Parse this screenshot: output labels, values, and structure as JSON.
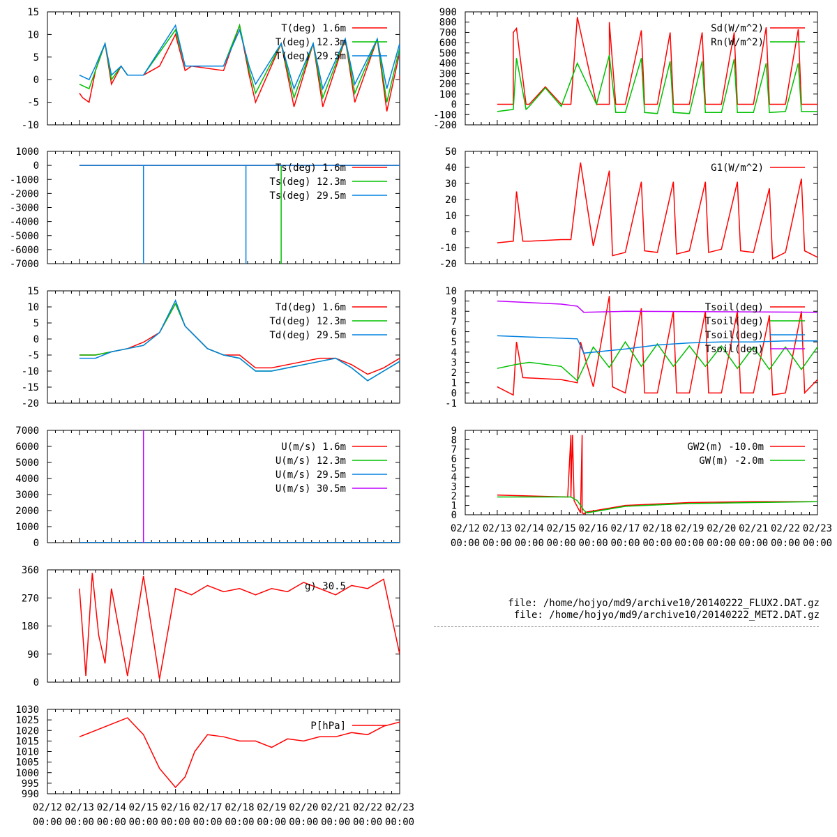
{
  "files": [
    "file: /home/hojyo/md9/archive10/20140222_FLUX2.DAT.gz",
    "file: /home/hojyo/md9/archive10/20140222_MET2.DAT.gz"
  ],
  "time_axis": {
    "start": "2014-02-12 00:00",
    "end": "2014-02-23 00:00",
    "tick_labels_top": [
      "02/12",
      "02/13",
      "02/14",
      "02/15",
      "02/16",
      "02/17",
      "02/18",
      "02/19",
      "02/20",
      "02/21",
      "02/22",
      "02/23"
    ],
    "tick_labels_bottom": [
      "00:00",
      "00:00",
      "00:00",
      "00:00",
      "00:00",
      "00:00",
      "00:00",
      "00:00",
      "00:00",
      "00:00",
      "00:00",
      "00:00"
    ]
  },
  "colors": {
    "red": "#ff0000",
    "green": "#00c000",
    "blue": "#0080e0",
    "purple": "#c000ff"
  },
  "chart_data": [
    {
      "id": "T",
      "type": "line",
      "ylim": [
        -10,
        15
      ],
      "yticks": [
        -10,
        -5,
        0,
        5,
        10,
        15
      ],
      "series": [
        {
          "name": "T(deg)  1.6m",
          "color": "#ff0000",
          "x": [
            1,
            1.1,
            1.3,
            1.5,
            1.8,
            2,
            2.3,
            2.5,
            3,
            3.5,
            4,
            4.3,
            4.5,
            5.5,
            6,
            6.3,
            6.5,
            7.3,
            7.7,
            8.3,
            8.6,
            9.3,
            9.6,
            10.3,
            10.6,
            11,
            11
          ],
          "y": [
            -3,
            -4,
            -5,
            2,
            8,
            -1,
            3,
            1,
            1,
            3,
            10,
            2,
            3,
            2,
            12,
            1,
            -5,
            8,
            -6,
            8,
            -6,
            9,
            -5,
            9,
            -7,
            6,
            0
          ]
        },
        {
          "name": "T(deg) 12.3m",
          "color": "#00c000",
          "x": [
            1,
            1.3,
            1.5,
            1.8,
            2,
            2.3,
            2.5,
            3,
            4,
            4.3,
            4.5,
            5.5,
            6,
            6.3,
            6.5,
            7.3,
            7.7,
            8.3,
            8.6,
            9.3,
            9.6,
            10.3,
            10.6,
            11,
            11
          ],
          "y": [
            -1,
            -2,
            2,
            8,
            0,
            3,
            1,
            1,
            11,
            3,
            3,
            3,
            12,
            2,
            -3,
            8,
            -4,
            8,
            -4,
            9,
            -3,
            9,
            -5,
            7,
            1
          ]
        },
        {
          "name": "T(deg) 29.5m",
          "color": "#0080e0",
          "x": [
            1,
            1.3,
            1.5,
            1.8,
            2,
            2.3,
            2.5,
            3,
            4,
            4.3,
            4.5,
            5.5,
            6,
            6.3,
            6.5,
            7.3,
            7.7,
            8.3,
            8.6,
            9.3,
            9.6,
            10.3,
            10.6,
            11,
            11
          ],
          "y": [
            1,
            0,
            3,
            8,
            1,
            3,
            1,
            1,
            12,
            3,
            3,
            3,
            11,
            3,
            -1,
            8,
            -2,
            8,
            -2,
            9,
            -1,
            9,
            -2,
            8,
            1
          ]
        }
      ]
    },
    {
      "id": "Ts",
      "type": "line",
      "ylim": [
        -7000,
        1000
      ],
      "yticks": [
        -7000,
        -6000,
        -5000,
        -4000,
        -3000,
        -2000,
        -1000,
        0,
        1000
      ],
      "series": [
        {
          "name": "Ts(deg)  1.6m",
          "color": "#ff0000",
          "x": [
            1,
            11
          ],
          "y": [
            0,
            0
          ]
        },
        {
          "name": "Ts(deg) 12.3m",
          "color": "#00c000",
          "x": [
            7.3,
            7.3
          ],
          "y": [
            0,
            -7000
          ]
        },
        {
          "name": "Ts(deg) 29.5m",
          "color": "#0080e0",
          "x": [
            1,
            3,
            3,
            3,
            6.2,
            6.2,
            6.2,
            11
          ],
          "y": [
            0,
            0,
            -7000,
            0,
            0,
            -7000,
            0,
            0
          ]
        }
      ]
    },
    {
      "id": "Td",
      "type": "line",
      "ylim": [
        -20,
        15
      ],
      "yticks": [
        -20,
        -15,
        -10,
        -5,
        0,
        5,
        10,
        15
      ],
      "series": [
        {
          "name": "Td(deg)  1.6m",
          "color": "#ff0000",
          "x": [
            1,
            1.5,
            2,
            2.5,
            3,
            3.5,
            4,
            4.3,
            4.5,
            5,
            5.5,
            6,
            6.5,
            7,
            7.5,
            8,
            8.5,
            9,
            9.5,
            10,
            10.5,
            11
          ],
          "y": [
            -5,
            -5,
            -4,
            -3,
            -1,
            2,
            11,
            4,
            2,
            -3,
            -5,
            -5,
            -9,
            -9,
            -8,
            -7,
            -6,
            -6,
            -8,
            -11,
            -9,
            -6
          ]
        },
        {
          "name": "Td(deg) 12.3m",
          "color": "#00c000",
          "x": [
            1,
            1.5,
            2,
            2.5,
            3,
            3.5,
            4,
            4.3,
            4.5,
            5,
            5.5,
            6,
            6.5,
            7,
            7.5,
            8,
            8.5,
            9,
            9.5,
            10,
            10.5,
            11
          ],
          "y": [
            -5,
            -5,
            -4,
            -3,
            -2,
            2,
            11,
            4,
            2,
            -3,
            -5,
            -6,
            -10,
            -10,
            -9,
            -8,
            -7,
            -6,
            -9,
            -13,
            -10,
            -7
          ]
        },
        {
          "name": "Td(deg) 29.5m",
          "color": "#0080e0",
          "x": [
            1,
            1.5,
            2,
            2.5,
            3,
            3.5,
            4,
            4.3,
            4.5,
            5,
            5.5,
            6,
            6.5,
            7,
            7.5,
            8,
            8.5,
            9,
            9.5,
            10,
            10.5,
            11
          ],
          "y": [
            -6,
            -6,
            -4,
            -3,
            -2,
            2,
            12,
            4,
            2,
            -3,
            -5,
            -6,
            -10,
            -10,
            -9,
            -8,
            -7,
            -6,
            -9,
            -13,
            -10,
            -7
          ]
        }
      ]
    },
    {
      "id": "U",
      "type": "line",
      "ylim": [
        0,
        7000
      ],
      "yticks": [
        0,
        1000,
        2000,
        3000,
        4000,
        5000,
        6000,
        7000
      ],
      "series": [
        {
          "name": "U(m/s)  1.6m",
          "color": "#ff0000",
          "x": [
            1,
            11
          ],
          "y": [
            5,
            5
          ]
        },
        {
          "name": "U(m/s) 12.3m",
          "color": "#00c000",
          "x": [
            1,
            11
          ],
          "y": [
            7,
            7
          ]
        },
        {
          "name": "U(m/s) 29.5m",
          "color": "#0080e0",
          "x": [
            1,
            11
          ],
          "y": [
            9,
            9
          ]
        },
        {
          "name": "U(m/s) 30.5m",
          "color": "#c000ff",
          "x": [
            3,
            3
          ],
          "y": [
            0,
            7000
          ]
        }
      ]
    },
    {
      "id": "WD",
      "type": "line",
      "ylim": [
        0,
        360
      ],
      "yticks": [
        0,
        90,
        180,
        270,
        360
      ],
      "legend_text": "g) 30.5",
      "series": [
        {
          "color": "#ff0000",
          "x": [
            1,
            1.2,
            1.4,
            1.6,
            1.8,
            2,
            2.5,
            3,
            3.5,
            4,
            4.5,
            5,
            5.5,
            6,
            6.5,
            7,
            7.5,
            8,
            8.5,
            9,
            9.5,
            10,
            10.5,
            11
          ],
          "y": [
            300,
            20,
            350,
            150,
            60,
            300,
            20,
            340,
            10,
            300,
            280,
            310,
            290,
            300,
            280,
            300,
            290,
            320,
            300,
            280,
            310,
            300,
            330,
            90
          ]
        }
      ]
    },
    {
      "id": "P",
      "type": "line",
      "ylim": [
        990,
        1030
      ],
      "yticks": [
        990,
        995,
        1000,
        1005,
        1010,
        1015,
        1020,
        1025,
        1030
      ],
      "series": [
        {
          "name": "P[hPa]",
          "color": "#ff0000",
          "x": [
            1,
            1.5,
            2,
            2.5,
            3,
            3.5,
            4,
            4.3,
            4.6,
            5,
            5.5,
            6,
            6.5,
            7,
            7.5,
            8,
            8.5,
            9,
            9.5,
            10,
            10.5,
            11
          ],
          "y": [
            1017,
            1020,
            1023,
            1026,
            1018,
            1002,
            993,
            998,
            1010,
            1018,
            1017,
            1015,
            1015,
            1012,
            1016,
            1015,
            1017,
            1017,
            1019,
            1018,
            1022,
            1024
          ]
        }
      ]
    },
    {
      "id": "Rad",
      "type": "line",
      "ylim": [
        -200,
        900
      ],
      "yticks": [
        -200,
        -100,
        0,
        100,
        200,
        300,
        400,
        500,
        600,
        700,
        800,
        900
      ],
      "series": [
        {
          "name": "Sd(W/m^2)",
          "color": "#ff0000",
          "x": [
            1,
            1.5,
            1.5,
            1.6,
            1.9,
            2,
            2.5,
            3,
            3.3,
            3.5,
            4.1,
            4.5,
            4.5,
            4.7,
            5,
            5.5,
            5.6,
            6,
            6.4,
            6.5,
            7,
            7.4,
            7.5,
            8,
            8.4,
            8.5,
            9,
            9.4,
            9.5,
            10,
            10.4,
            10.5,
            11
          ],
          "y": [
            0,
            0,
            700,
            740,
            0,
            0,
            170,
            0,
            0,
            850,
            0,
            0,
            800,
            0,
            0,
            720,
            0,
            0,
            700,
            0,
            0,
            700,
            0,
            0,
            700,
            0,
            0,
            750,
            0,
            0,
            730,
            0,
            0
          ]
        },
        {
          "name": "Rn(W/m^2)",
          "color": "#00c000",
          "x": [
            1,
            1.5,
            1.6,
            1.9,
            2,
            2.5,
            3,
            3.5,
            4.1,
            4.5,
            4.7,
            5,
            5.5,
            5.6,
            6,
            6.4,
            6.5,
            7,
            7.4,
            7.5,
            8,
            8.4,
            8.5,
            9,
            9.4,
            9.5,
            10,
            10.4,
            10.5,
            11
          ],
          "y": [
            -70,
            -50,
            450,
            -50,
            -20,
            160,
            -20,
            400,
            0,
            480,
            -80,
            -80,
            450,
            -80,
            -90,
            420,
            -80,
            -90,
            420,
            -80,
            -80,
            440,
            -80,
            -80,
            400,
            -80,
            -70,
            400,
            -70,
            -70
          ]
        }
      ]
    },
    {
      "id": "G1",
      "type": "line",
      "ylim": [
        -20,
        50
      ],
      "yticks": [
        -20,
        -10,
        0,
        10,
        20,
        30,
        40,
        50
      ],
      "series": [
        {
          "name": "G1(W/m^2)",
          "color": "#ff0000",
          "x": [
            1,
            1.5,
            1.6,
            1.8,
            2,
            3,
            3.3,
            3.5,
            3.6,
            4,
            4.5,
            4.6,
            5,
            5.5,
            5.6,
            6,
            6.5,
            6.6,
            7,
            7.5,
            7.6,
            8,
            8.5,
            8.6,
            9,
            9.5,
            9.6,
            10,
            10.5,
            10.6,
            11
          ],
          "y": [
            -7,
            -6,
            25,
            -6,
            -6,
            -5,
            -5,
            28,
            43,
            -9,
            38,
            -15,
            -13,
            31,
            -12,
            -13,
            31,
            -14,
            -12,
            31,
            -13,
            -11,
            31,
            -12,
            -13,
            27,
            -17,
            -13,
            33,
            -12,
            -16
          ]
        }
      ]
    },
    {
      "id": "Tsoil",
      "type": "line",
      "ylim": [
        -1,
        10
      ],
      "yticks": [
        -1,
        0,
        1,
        2,
        3,
        4,
        5,
        6,
        7,
        8,
        9,
        10
      ],
      "series": [
        {
          "name": "Tsoil(deg)",
          "color": "#ff0000",
          "x": [
            1,
            1.5,
            1.6,
            1.8,
            3,
            3.5,
            3.6,
            4,
            4.5,
            4.6,
            5,
            5.5,
            5.6,
            6,
            6.5,
            6.6,
            7,
            7.5,
            7.6,
            8,
            8.5,
            8.6,
            9,
            9.5,
            9.6,
            10,
            10.5,
            10.6,
            11
          ],
          "y": [
            0.6,
            -0.2,
            5,
            1.5,
            1.3,
            1,
            5,
            0.6,
            9.5,
            0.6,
            0,
            8.3,
            0,
            0,
            8,
            0,
            0,
            8,
            0,
            0,
            8,
            0,
            0,
            7.6,
            -0.2,
            0,
            8,
            0,
            1.3
          ]
        },
        {
          "name": "Tsoil(deg)",
          "color": "#00c000",
          "x": [
            1,
            1.6,
            2,
            3,
            3.5,
            4,
            4.5,
            5,
            5.5,
            6,
            6.5,
            7,
            7.5,
            8,
            8.5,
            9,
            9.5,
            10,
            10.5,
            11
          ],
          "y": [
            2.4,
            2.8,
            3,
            2.6,
            1.2,
            4.5,
            2.5,
            5,
            2.6,
            4.8,
            2.6,
            4.6,
            2.6,
            4.6,
            2.4,
            4.5,
            2.3,
            4.5,
            2.3,
            4.5
          ]
        },
        {
          "name": "Tsoil(deg)",
          "color": "#0080e0",
          "x": [
            1,
            3.5,
            3.7,
            5,
            6,
            7,
            8,
            9,
            10,
            11
          ],
          "y": [
            5.6,
            5.3,
            3.9,
            4.3,
            4.7,
            4.9,
            5,
            5,
            5.1,
            5.1
          ]
        },
        {
          "name": "Tsoil(deg)",
          "color": "#c000ff",
          "x": [
            1,
            3,
            3.5,
            3.7,
            5,
            11
          ],
          "y": [
            9,
            8.7,
            8.5,
            7.9,
            8,
            7.9
          ]
        }
      ]
    },
    {
      "id": "GW",
      "type": "line",
      "ylim": [
        0,
        9
      ],
      "yticks": [
        0,
        1,
        2,
        3,
        4,
        5,
        6,
        7,
        8,
        9
      ],
      "series": [
        {
          "name": "GW2(m) -10.0m",
          "color": "#ff0000",
          "x": [
            1,
            3.2,
            3.3,
            3.3,
            3.35,
            3.4,
            3.6,
            3.65,
            3.65,
            3.7,
            3.8,
            5,
            7,
            9,
            11
          ],
          "y": [
            2.1,
            1.9,
            8.5,
            1.9,
            8.5,
            1.5,
            0.2,
            8.5,
            0.2,
            0.1,
            0.3,
            1,
            1.3,
            1.4,
            1.4
          ]
        },
        {
          "name": "GW(m) -2.0m",
          "color": "#00c000",
          "x": [
            1,
            3.3,
            3.5,
            3.7,
            3.8,
            5,
            7,
            9,
            11
          ],
          "y": [
            1.9,
            1.9,
            1.5,
            0.5,
            0.2,
            0.9,
            1.2,
            1.3,
            1.4
          ]
        }
      ]
    }
  ]
}
